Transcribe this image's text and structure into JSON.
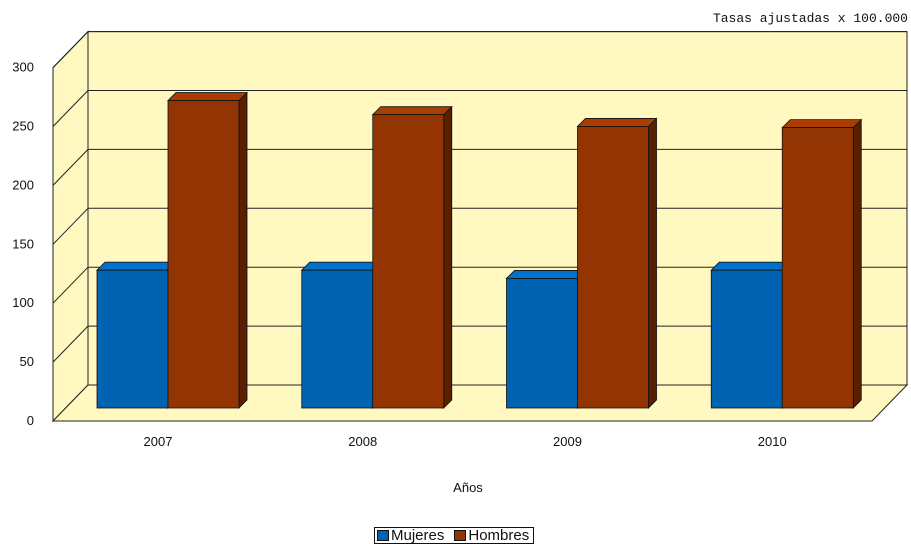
{
  "chart_data": {
    "type": "bar",
    "title": "",
    "note": "Tasas ajustadas x 100.000",
    "xlabel": "Años",
    "ylabel": "",
    "categories": [
      "2007",
      "2008",
      "2009",
      "2010"
    ],
    "ylim": [
      0,
      300
    ],
    "yticks": [
      0,
      50,
      100,
      150,
      200,
      250,
      300
    ],
    "grid": true,
    "three_d": true,
    "legend_position": "bottom",
    "series": [
      {
        "name": "Mujeres",
        "values": [
          117,
          117,
          110,
          117
        ],
        "color": "#0063b1"
      },
      {
        "name": "Hombres",
        "values": [
          261,
          249,
          239,
          238
        ],
        "color": "#933502"
      }
    ],
    "colors": {
      "plot_wall": "#fff8c0",
      "grid": "#222222"
    }
  }
}
